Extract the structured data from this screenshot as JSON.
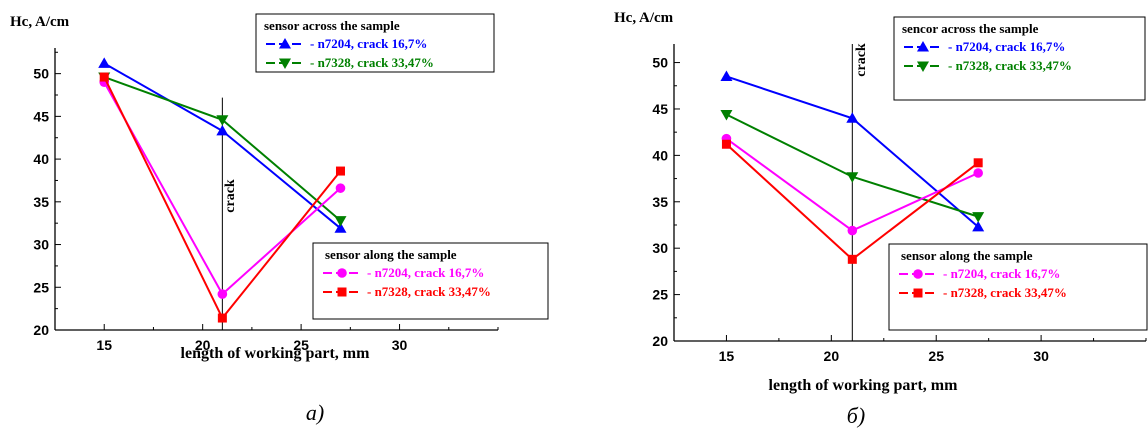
{
  "chart_data": [
    {
      "type": "line",
      "panel": "a)",
      "ylabel": "Hc, A/cm",
      "xlabel": "length of working part, mm",
      "xlim": [
        12.5,
        35
      ],
      "ylim": [
        20,
        53
      ],
      "x_ticks": [
        15,
        20,
        25,
        30
      ],
      "y_ticks": [
        20,
        25,
        30,
        35,
        40,
        45,
        50
      ],
      "vline": {
        "x": 21,
        "label": "crack"
      },
      "legends": [
        {
          "title": "sensor across the sample",
          "placement": "top-right",
          "series": [
            0,
            1
          ]
        },
        {
          "title": "sensor along the sample",
          "placement": "bottom-right",
          "series": [
            2,
            3
          ]
        }
      ],
      "series": [
        {
          "name": "- n7204, crack 16,7%",
          "color": "#0000ff",
          "marker": "triangle-up",
          "x": [
            15,
            21,
            27
          ],
          "y": [
            51.2,
            43.3,
            31.9
          ]
        },
        {
          "name": "- n7328, crack 33,47%",
          "color": "#008000",
          "marker": "triangle-down",
          "x": [
            15,
            21,
            27
          ],
          "y": [
            49.6,
            44.6,
            32.8
          ]
        },
        {
          "name": "- n7204, crack 16,7%",
          "color": "#ff00ff",
          "marker": "circle",
          "x": [
            15,
            21,
            27
          ],
          "y": [
            49.0,
            24.2,
            36.6
          ]
        },
        {
          "name": "- n7328, crack 33,47%",
          "color": "#ff0000",
          "marker": "square",
          "x": [
            15,
            21,
            27
          ],
          "y": [
            49.6,
            21.4,
            38.6
          ]
        }
      ]
    },
    {
      "type": "line",
      "panel": "б)",
      "ylabel": "Hc, A/cm",
      "xlabel": "length of working part, mm",
      "xlim": [
        12.5,
        35
      ],
      "ylim": [
        20,
        52
      ],
      "x_ticks": [
        15,
        20,
        25,
        30
      ],
      "y_ticks": [
        20,
        25,
        30,
        35,
        40,
        45,
        50
      ],
      "vline": {
        "x": 21,
        "label": "crack"
      },
      "legends": [
        {
          "title": "sencor across the sample",
          "placement": "top-right",
          "series": [
            0,
            1
          ]
        },
        {
          "title": "sensor along the sample",
          "placement": "bottom-right",
          "series": [
            2,
            3
          ]
        }
      ],
      "series": [
        {
          "name": "- n7204, crack 16,7%",
          "color": "#0000ff",
          "marker": "triangle-up",
          "x": [
            15,
            21,
            27
          ],
          "y": [
            48.5,
            44.0,
            32.3
          ]
        },
        {
          "name": "- n7328, crack 33,47%",
          "color": "#008000",
          "marker": "triangle-down",
          "x": [
            15,
            21,
            27
          ],
          "y": [
            44.4,
            37.7,
            33.4
          ]
        },
        {
          "name": "- n7204, crack 16,7%",
          "color": "#ff00ff",
          "marker": "circle",
          "x": [
            15,
            21,
            27
          ],
          "y": [
            41.8,
            31.9,
            38.1
          ]
        },
        {
          "name": "- n7328, crack 33,47%",
          "color": "#ff0000",
          "marker": "square",
          "x": [
            15,
            21,
            27
          ],
          "y": [
            41.2,
            28.8,
            39.2
          ]
        }
      ]
    }
  ]
}
